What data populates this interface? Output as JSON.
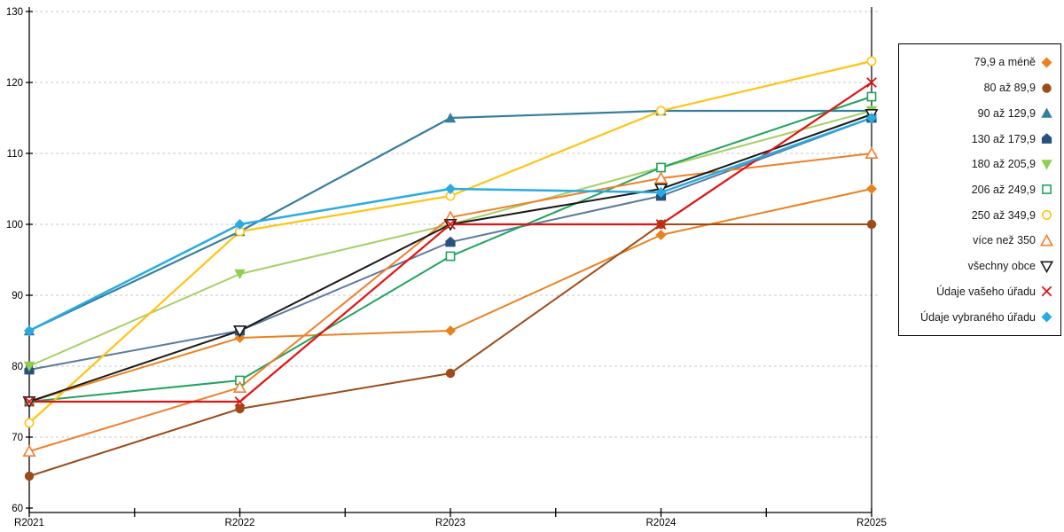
{
  "chart_data": {
    "type": "line",
    "title": "",
    "xlabel": "",
    "ylabel": "",
    "categories": [
      "R2021",
      "R2022",
      "R2023",
      "R2024",
      "R2025"
    ],
    "x_tick_labels": [
      "R2021",
      "R2022",
      "R2023",
      "R2024",
      "R2025"
    ],
    "y_tick_labels": [
      "60",
      "70",
      "80",
      "90",
      "100",
      "110",
      "120",
      "130"
    ],
    "ylim": [
      60,
      130
    ],
    "ytick_interval": 10,
    "grid": "horizontal-dashed",
    "grid_color": "#c9c9c9",
    "axis_color": "#000000",
    "legend_position": "right-box",
    "series": [
      {
        "name": "79,9 a méně",
        "marker": "diamond",
        "fill": "filled",
        "color": "#E8821E",
        "line_width": 2,
        "values": [
          75,
          84,
          85,
          98.5,
          105
        ]
      },
      {
        "name": "80 až 89,9",
        "marker": "circle",
        "fill": "filled",
        "color": "#9C4B19",
        "line_width": 2,
        "values": [
          64.5,
          74,
          79,
          100,
          100
        ]
      },
      {
        "name": "90 až 129,9",
        "marker": "triangle-up",
        "fill": "filled",
        "color": "#377E9C",
        "line_width": 2.2,
        "values": [
          85,
          99,
          115,
          116,
          116
        ]
      },
      {
        "name": "130 až 179,9",
        "marker": "pentagon",
        "fill": "filled",
        "color": "#28517C",
        "line_color": "#5B7A9D",
        "line_width": 2,
        "values": [
          79.5,
          85,
          97.5,
          104,
          115
        ]
      },
      {
        "name": "180 až 205,9",
        "marker": "triangle-down",
        "fill": "filled",
        "color": "#8FCE4E",
        "line_color": "#A5D066",
        "line_width": 2,
        "values": [
          80,
          93,
          100,
          108,
          116
        ]
      },
      {
        "name": "206 až 249,9",
        "marker": "square",
        "fill": "open",
        "color": "#22A35D",
        "line_width": 2,
        "values": [
          75,
          78,
          95.5,
          108,
          118
        ]
      },
      {
        "name": "250 až 349,9",
        "marker": "circle",
        "fill": "open",
        "color": "#FFC415",
        "line_width": 2.2,
        "values": [
          72,
          99,
          104,
          116,
          123
        ]
      },
      {
        "name": "více než 350",
        "marker": "triangle-up",
        "fill": "open",
        "color": "#F07F2D",
        "line_width": 2,
        "values": [
          68,
          77,
          101,
          106.5,
          110
        ]
      },
      {
        "name": "všechny obce",
        "marker": "triangle-down",
        "fill": "open",
        "color": "#1A1A1A",
        "line_width": 2,
        "values": [
          75,
          85,
          100,
          105,
          115.5
        ]
      },
      {
        "name": "Údaje vašeho úřadu",
        "marker": "x",
        "fill": "open",
        "color": "#E01414",
        "line_width": 2.2,
        "values": [
          75,
          75,
          100,
          100,
          120
        ]
      },
      {
        "name": "Údaje vybraného úřadu",
        "marker": "diamond",
        "fill": "filled",
        "color": "#29ABE2",
        "line_width": 2.5,
        "values": [
          85,
          100,
          105,
          104.5,
          115
        ]
      }
    ]
  }
}
